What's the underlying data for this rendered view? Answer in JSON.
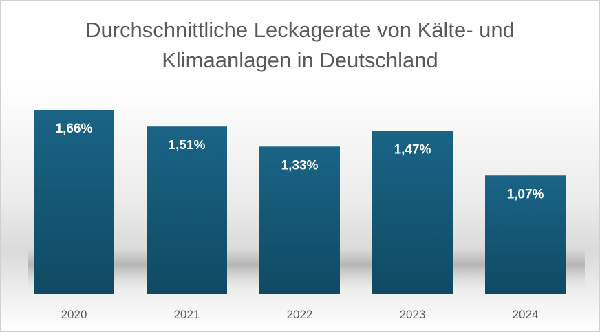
{
  "chart_data": {
    "type": "bar",
    "title_lines": [
      "Durchschnittliche Leckagerate von Kälte- und",
      "Klimaanlagen in Deutschland"
    ],
    "categories": [
      "2020",
      "2021",
      "2022",
      "2023",
      "2024"
    ],
    "values": [
      1.66,
      1.51,
      1.33,
      1.47,
      1.07
    ],
    "data_labels": [
      "1,66%",
      "1,51%",
      "1,33%",
      "1,47%",
      "1,07%"
    ],
    "unit": "%",
    "xlabel": "",
    "ylabel": "",
    "ylim": [
      0,
      1.66
    ],
    "grid": false,
    "legend": "none",
    "colors": {
      "bar_top": "#1a6486",
      "bar_bottom": "#0f4a63",
      "label": "#ffffff",
      "tick": "#595959",
      "title": "#595959"
    }
  }
}
